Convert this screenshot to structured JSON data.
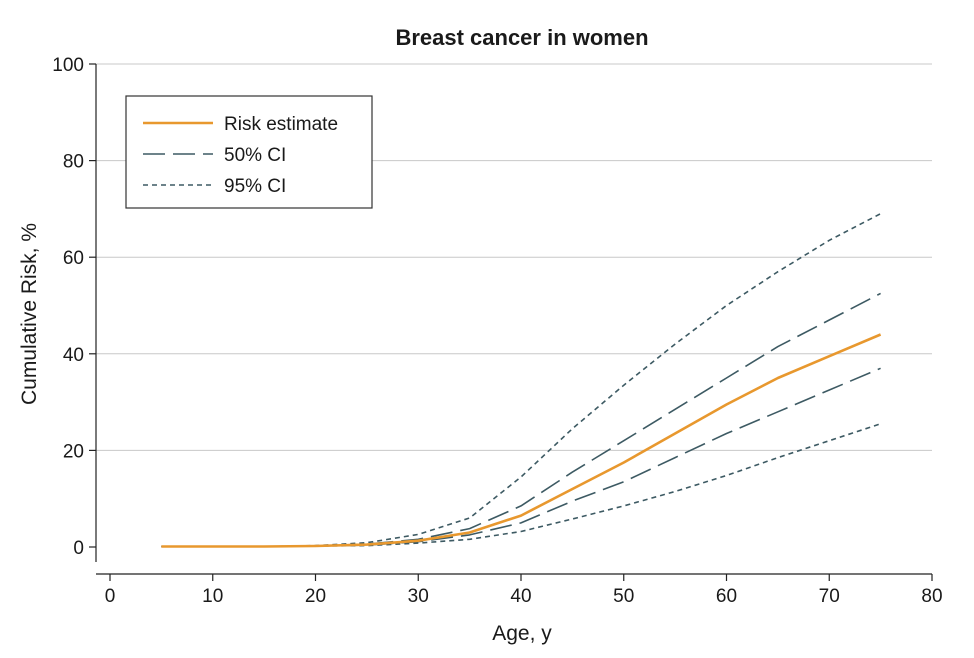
{
  "chart_data": {
    "type": "line",
    "title": "Breast cancer in women",
    "xlabel": "Age, y",
    "ylabel": "Cumulative Risk, %",
    "xlim": [
      0,
      80
    ],
    "ylim": [
      0,
      100
    ],
    "xticks": [
      0,
      10,
      20,
      30,
      40,
      50,
      60,
      70,
      80
    ],
    "yticks": [
      0,
      20,
      40,
      60,
      80,
      100
    ],
    "grid": "horizontal",
    "legend": "top-left",
    "x": [
      5,
      10,
      15,
      20,
      25,
      30,
      35,
      40,
      45,
      50,
      55,
      60,
      65,
      70,
      75
    ],
    "series": [
      {
        "name": "Risk estimate",
        "style": "solid",
        "color": "#e8982e",
        "values": [
          0.1,
          0.1,
          0.1,
          0.2,
          0.5,
          1.3,
          3.0,
          6.5,
          12.0,
          17.5,
          23.5,
          29.5,
          35.0,
          39.5,
          44.0
        ]
      },
      {
        "name": "50% CI",
        "style": "dashed",
        "color": "#3d5a63",
        "values": [
          0.1,
          0.1,
          0.1,
          0.2,
          0.6,
          1.6,
          3.8,
          8.5,
          15.5,
          22.0,
          28.5,
          35.0,
          41.5,
          47.0,
          52.5
        ]
      },
      {
        "name": "50% CI",
        "style": "dashed",
        "color": "#3d5a63",
        "legend": false,
        "values": [
          0.1,
          0.1,
          0.1,
          0.2,
          0.4,
          1.1,
          2.5,
          5.0,
          9.5,
          13.5,
          18.5,
          23.5,
          28.0,
          32.5,
          37.0
        ]
      },
      {
        "name": "95% CI",
        "style": "dotted",
        "color": "#3d5a63",
        "values": [
          0.1,
          0.1,
          0.1,
          0.3,
          0.9,
          2.6,
          6.0,
          14.5,
          24.5,
          33.5,
          42.0,
          50.0,
          57.0,
          63.5,
          69.0
        ]
      },
      {
        "name": "95% CI",
        "style": "dotted",
        "color": "#3d5a63",
        "legend": false,
        "values": [
          0.1,
          0.1,
          0.1,
          0.2,
          0.3,
          0.8,
          1.6,
          3.2,
          5.8,
          8.5,
          11.5,
          14.8,
          18.5,
          22.0,
          25.5
        ]
      }
    ]
  }
}
